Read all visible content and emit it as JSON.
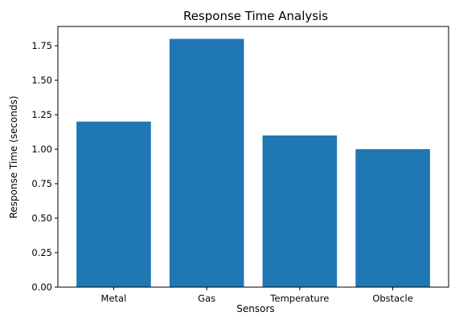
{
  "chart_data": {
    "type": "bar",
    "title": "Response Time Analysis",
    "xlabel": "Sensors",
    "ylabel": "Response Time (seconds)",
    "categories": [
      "Metal",
      "Gas",
      "Temperature",
      "Obstacle"
    ],
    "values": [
      1.2,
      1.8,
      1.1,
      1.0
    ],
    "ylim": [
      0,
      1.89
    ],
    "yticks": [
      "0.00",
      "0.25",
      "0.50",
      "0.75",
      "1.00",
      "1.25",
      "1.50",
      "1.75"
    ],
    "bar_color": "#1f77b4",
    "grid": false,
    "legend": "none"
  }
}
